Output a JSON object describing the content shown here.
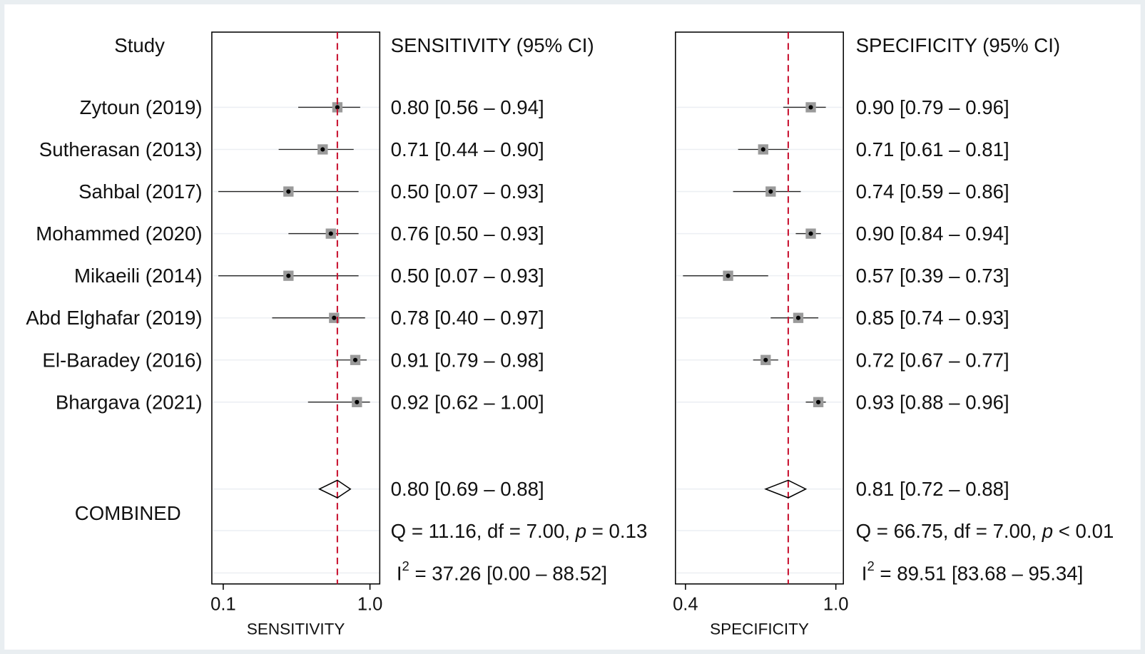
{
  "chart_data": {
    "type": "forest",
    "study_header": "Study",
    "studies": [
      "Zytoun (2019)",
      "Sutherasan (2013)",
      "Sahbal (2017)",
      "Mohammed (2020)",
      "Mikaeili (2014)",
      "Abd Elghafar (2019)",
      "El-Baradey (2016)",
      "Bhargava (2021)"
    ],
    "combined_label": "COMBINED",
    "box_color": "#9a9a9a",
    "ref_line_color": "#c8102e",
    "panels": [
      {
        "title": "SENSITIVITY (95% CI)",
        "xlabel": "SENSITIVITY",
        "xlim": [
          0.03,
          1.06
        ],
        "xticks": [
          0.1,
          {
            "value": 1,
            "label": "1.0"
          }
        ],
        "values": [
          0.8,
          0.71,
          0.5,
          0.76,
          0.5,
          0.78,
          0.91,
          0.92
        ],
        "lower": [
          0.56,
          0.44,
          0.07,
          0.5,
          0.07,
          0.4,
          0.79,
          0.62
        ],
        "upper": [
          0.94,
          0.9,
          0.93,
          0.93,
          0.93,
          0.97,
          0.98,
          1.0
        ],
        "value_labels": [
          "0.80 [0.56 – 0.94]",
          "0.71 [0.44 – 0.90]",
          "0.50 [0.07 – 0.93]",
          "0.76 [0.50 – 0.93]",
          "0.50 [0.07 – 0.93]",
          "0.78 [0.40 – 0.97]",
          "0.91 [0.79 – 0.98]",
          "0.92 [0.62 – 1.00]"
        ],
        "combined": {
          "value": 0.8,
          "lower": 0.69,
          "upper": 0.88,
          "label": "0.80 [0.69 – 0.88]"
        },
        "heterogeneity": {
          "q_text": "Q = 11.16, df = 7.00, ",
          "p_symbol": "p",
          "p_text": " = 0.13"
        },
        "i2": {
          "symbol": "I",
          "power": "2",
          "text": " = 37.26 [0.00 – 88.52]"
        }
      },
      {
        "title": "SPECIFICITY (95% CI)",
        "xlabel": "SPECIFICITY",
        "xlim": [
          0.36,
          1.03
        ],
        "xticks": [
          0.4,
          {
            "value": 1,
            "label": "1.0"
          }
        ],
        "values": [
          0.9,
          0.71,
          0.74,
          0.9,
          0.57,
          0.85,
          0.72,
          0.93
        ],
        "lower": [
          0.79,
          0.61,
          0.59,
          0.84,
          0.39,
          0.74,
          0.67,
          0.88
        ],
        "upper": [
          0.96,
          0.81,
          0.86,
          0.94,
          0.73,
          0.93,
          0.77,
          0.96
        ],
        "value_labels": [
          "0.90 [0.79 – 0.96]",
          "0.71 [0.61 – 0.81]",
          "0.74 [0.59 – 0.86]",
          "0.90 [0.84 – 0.94]",
          "0.57 [0.39 – 0.73]",
          "0.85 [0.74 – 0.93]",
          "0.72 [0.67 – 0.77]",
          "0.93 [0.88 – 0.96]"
        ],
        "combined": {
          "value": 0.81,
          "lower": 0.72,
          "upper": 0.88,
          "label": "0.81 [0.72 – 0.88]"
        },
        "heterogeneity": {
          "q_text": "Q = 66.75, df = 7.00, ",
          "p_symbol": "p",
          "p_text": " < 0.01"
        },
        "i2": {
          "symbol": "I",
          "power": "2",
          "text": " = 89.51 [83.68 – 95.34]"
        }
      }
    ]
  }
}
